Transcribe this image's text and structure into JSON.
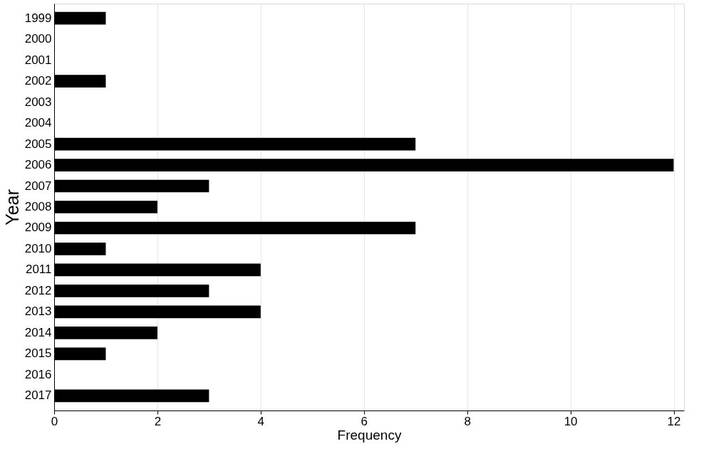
{
  "chart_data": {
    "type": "bar",
    "orientation": "horizontal",
    "xlabel": "Frequency",
    "ylabel": "Year",
    "categories": [
      "1999",
      "2000",
      "2001",
      "2002",
      "2003",
      "2004",
      "2005",
      "2006",
      "2007",
      "2008",
      "2009",
      "2010",
      "2011",
      "2012",
      "2013",
      "2014",
      "2015",
      "2016",
      "2017"
    ],
    "values": [
      1,
      0,
      0,
      1,
      0,
      0,
      7,
      12,
      3,
      2,
      7,
      1,
      4,
      3,
      4,
      2,
      1,
      0,
      3
    ],
    "color": "#000000",
    "xlim": [
      0,
      12.2
    ],
    "xticks": [
      0,
      2,
      4,
      6,
      8,
      10,
      12
    ],
    "grid": "x"
  }
}
